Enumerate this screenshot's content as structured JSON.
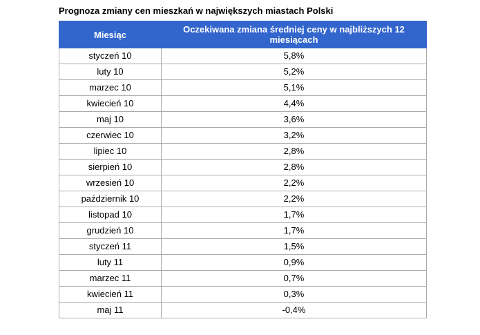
{
  "page_title": "Prognoza zmiany cen mieszkań w największych miastach Polski",
  "chart_data": {
    "type": "table",
    "title": "Prognoza zmiany cen mieszkań w największych miastach Polski",
    "columns": [
      "Miesiąc",
      "Oczekiwana zmiana średniej ceny w najbliższych 12 miesiącach"
    ],
    "rows": [
      [
        "styczeń 10",
        "5,8%"
      ],
      [
        "luty 10",
        "5,2%"
      ],
      [
        "marzec 10",
        "5,1%"
      ],
      [
        "kwiecień 10",
        "4,4%"
      ],
      [
        "maj 10",
        "3,6%"
      ],
      [
        "czerwiec 10",
        "3,2%"
      ],
      [
        "lipiec 10",
        "2,8%"
      ],
      [
        "sierpień 10",
        "2,8%"
      ],
      [
        "wrzesień 10",
        "2,2%"
      ],
      [
        "październik 10",
        "2,2%"
      ],
      [
        "listopad 10",
        "1,7%"
      ],
      [
        "grudzień 10",
        "1,7%"
      ],
      [
        "styczeń 11",
        "1,5%"
      ],
      [
        "luty 11",
        "0,9%"
      ],
      [
        "marzec 11",
        "0,7%"
      ],
      [
        "kwiecień 11",
        "0,3%"
      ],
      [
        "maj 11",
        "-0,4%"
      ]
    ],
    "values_numeric_percent": [
      5.8,
      5.2,
      5.1,
      4.4,
      3.6,
      3.2,
      2.8,
      2.8,
      2.2,
      2.2,
      1.7,
      1.7,
      1.5,
      0.9,
      0.7,
      0.3,
      -0.4
    ],
    "colors": {
      "header_bg": "#3366CC",
      "header_text": "#FFFFFF",
      "cell_border": "#ABABAB",
      "body_text": "#000000"
    },
    "layout": {
      "legend": "none",
      "grid": "table-borders"
    }
  }
}
